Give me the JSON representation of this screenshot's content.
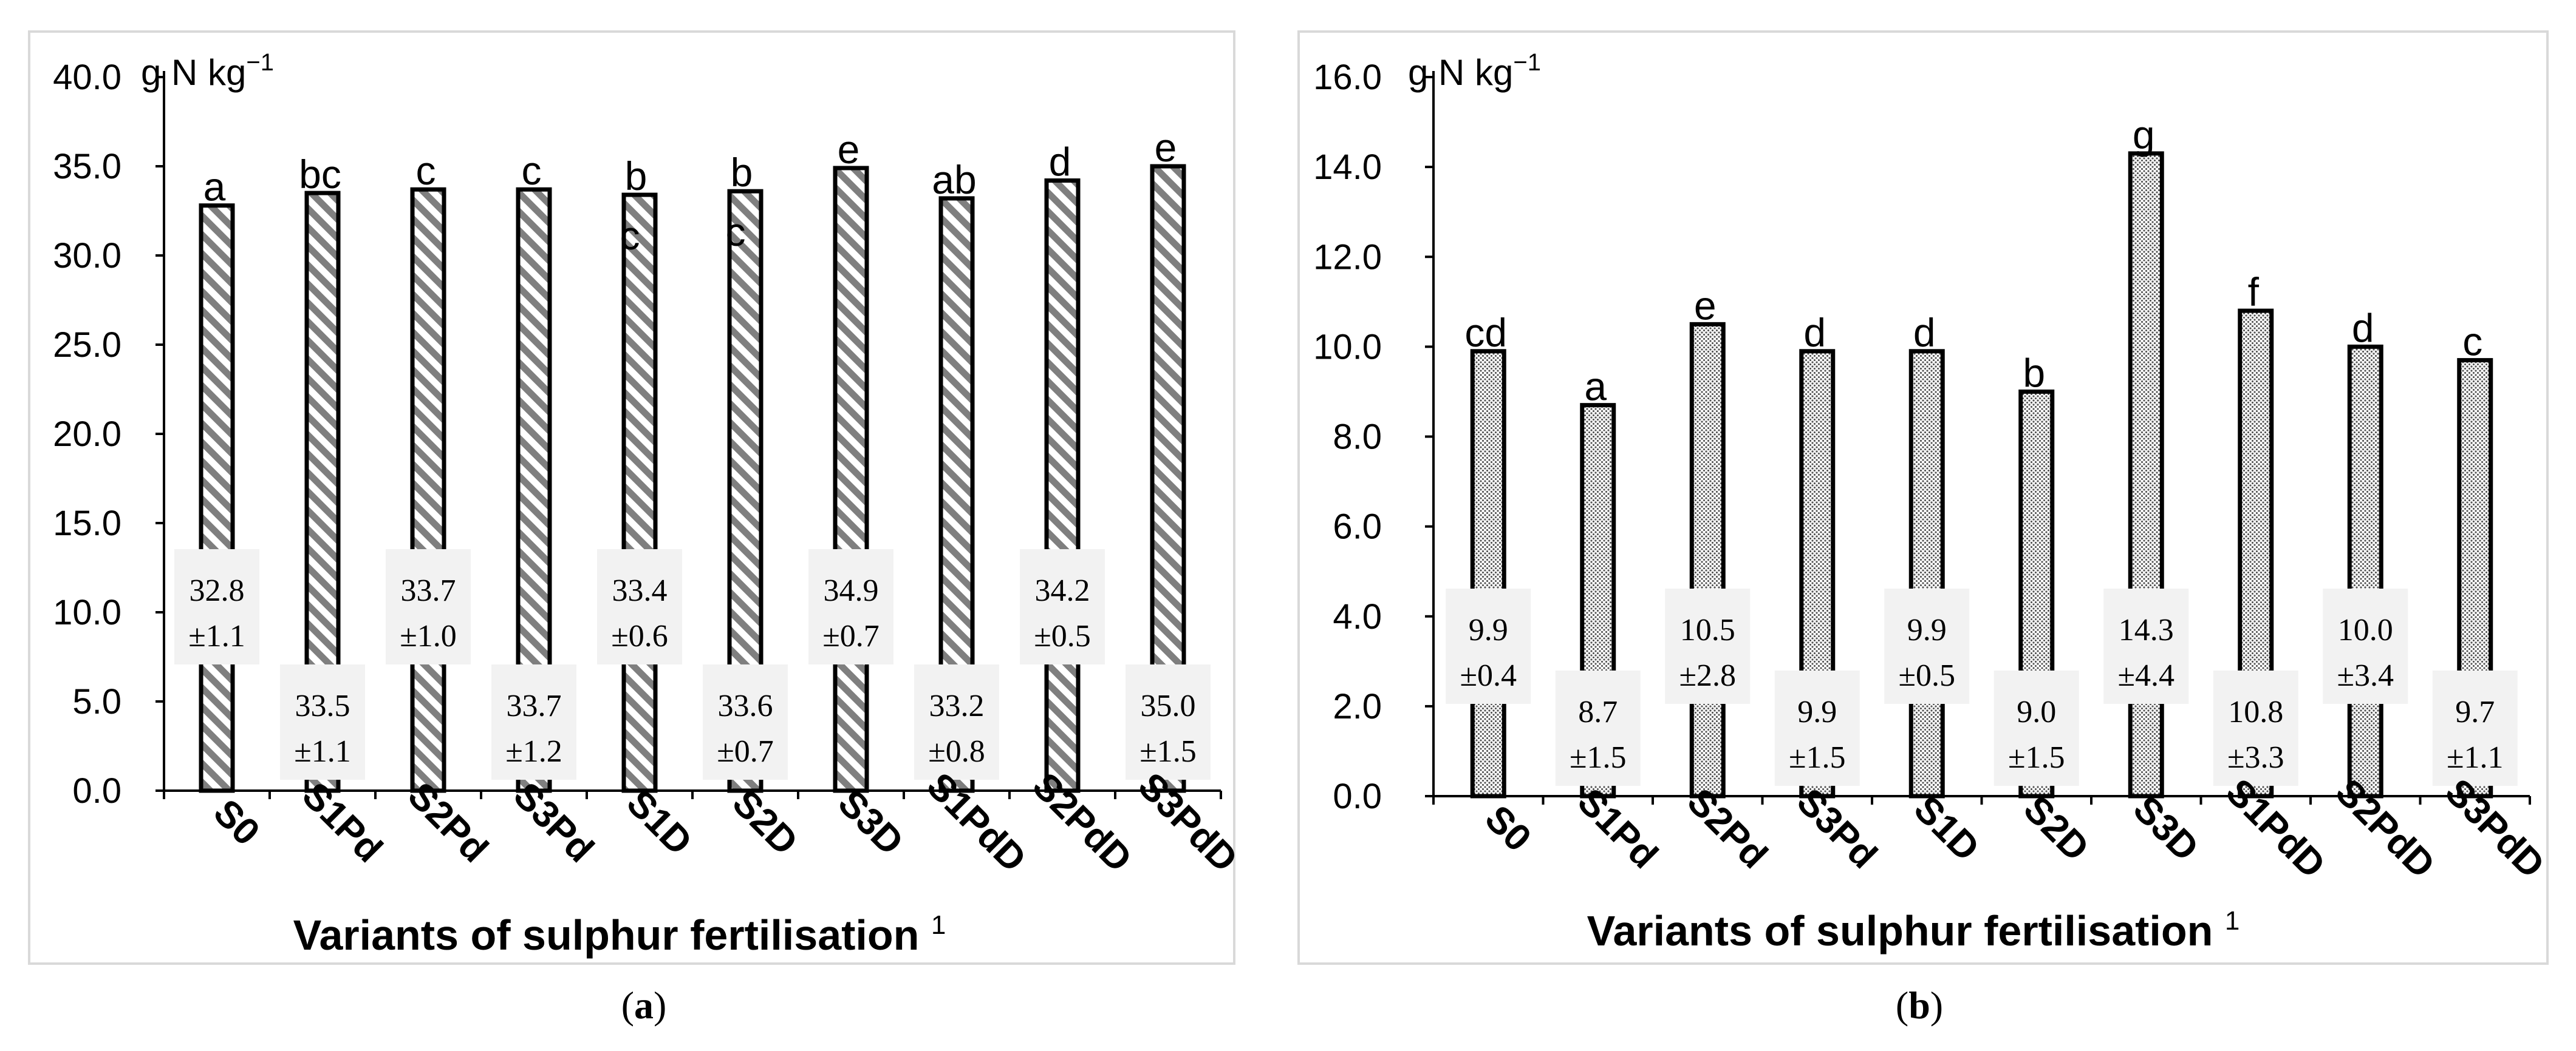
{
  "chart_data": [
    {
      "type": "bar",
      "panel_label": "a",
      "title": "",
      "unit_label": "g N kg",
      "unit_exponent": "−1",
      "xlabel": "Variants of sulphur fertilisation",
      "xlabel_superscript": "1",
      "ylabel": "",
      "ylim": [
        0,
        40
      ],
      "ytick_labels": [
        "0.0",
        "5.0",
        "10.0",
        "15.0",
        "20.0",
        "25.0",
        "30.0",
        "35.0",
        "40.0"
      ],
      "categories": [
        "S0",
        "S1Pd",
        "S2Pd",
        "S3Pd",
        "S1D",
        "S2D",
        "S3D",
        "S1PdD",
        "S2PdD",
        "S3PdD"
      ],
      "values": [
        32.8,
        33.5,
        33.7,
        33.7,
        33.4,
        33.6,
        34.9,
        33.2,
        34.2,
        35.0
      ],
      "sd": [
        1.1,
        1.1,
        1.0,
        1.2,
        0.6,
        0.7,
        0.7,
        0.8,
        0.5,
        1.5
      ],
      "value_labels": [
        "32.8",
        "33.5",
        "33.7",
        "33.7",
        "33.4",
        "33.6",
        "34.9",
        "33.2",
        "34.2",
        "35.0"
      ],
      "sd_labels": [
        "±1.1",
        "±1.1",
        "±1.0",
        "±1.2",
        "±0.6",
        "±0.7",
        "±0.7",
        "±0.8",
        "±0.5",
        "±1.5"
      ],
      "significance": [
        "a",
        "bc",
        "c",
        "c",
        "bc",
        "bc",
        "e",
        "ab",
        "d",
        "e"
      ],
      "bar_fill": "diagonal-stripes",
      "colors": {
        "bar_stroke": "#000000",
        "hatch": "#7f7f7f",
        "label_box": "#f2f2f2",
        "frame": "#d9d9d9"
      }
    },
    {
      "type": "bar",
      "panel_label": "b",
      "title": "",
      "unit_label": "g N kg",
      "unit_exponent": "−1",
      "xlabel": "Variants of sulphur fertilisation",
      "xlabel_superscript": "1",
      "ylabel": "",
      "ylim": [
        0,
        16
      ],
      "ytick_labels": [
        "0.0",
        "2.0",
        "4.0",
        "6.0",
        "8.0",
        "10.0",
        "12.0",
        "14.0",
        "16.0"
      ],
      "categories": [
        "S0",
        "S1Pd",
        "S2Pd",
        "S3Pd",
        "S1D",
        "S2D",
        "S3D",
        "S1PdD",
        "S2PdD",
        "S3PdD"
      ],
      "values": [
        9.9,
        8.7,
        10.5,
        9.9,
        9.9,
        9.0,
        14.3,
        10.8,
        10.0,
        9.7
      ],
      "sd": [
        0.4,
        1.5,
        2.8,
        1.5,
        0.5,
        1.5,
        4.4,
        3.3,
        3.4,
        1.1
      ],
      "value_labels": [
        "9.9",
        "8.7",
        "10.5",
        "9.9",
        "9.9",
        "9.0",
        "14.3",
        "10.8",
        "10.0",
        "9.7"
      ],
      "sd_labels": [
        "±0.4",
        "±1.5",
        "±2.8",
        "±1.5",
        "±0.5",
        "±1.5",
        "±4.4",
        "±3.3",
        "±3.4",
        "±1.1"
      ],
      "significance": [
        "cd",
        "a",
        "e",
        "d",
        "d",
        "b",
        "g",
        "f",
        "d",
        "c"
      ],
      "bar_fill": "dotted",
      "colors": {
        "bar_stroke": "#000000",
        "dots": "#555555",
        "label_box": "#f2f2f2",
        "frame": "#d9d9d9"
      }
    }
  ]
}
